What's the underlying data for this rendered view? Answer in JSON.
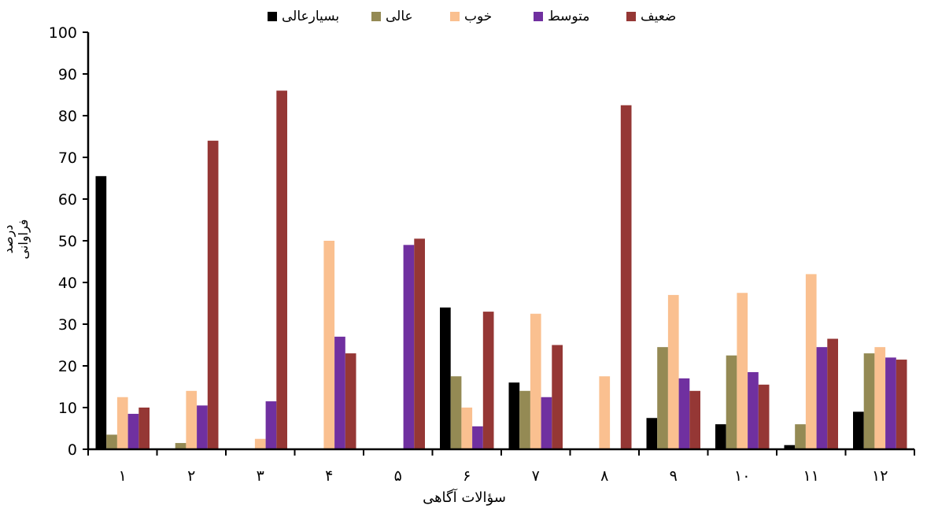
{
  "chart_data": {
    "type": "bar",
    "categories": [
      "۱",
      "۲",
      "۳",
      "۴",
      "۵",
      "۶",
      "۷",
      "۸",
      "۹",
      "۱۰",
      "۱۱",
      "۱۲"
    ],
    "series": [
      {
        "name": "بسیارعالی",
        "color": "#000000",
        "values": [
          65.5,
          0,
          0,
          0,
          0,
          34,
          16,
          0,
          7.5,
          6,
          1,
          9
        ]
      },
      {
        "name": "عالی",
        "color": "#948A54",
        "values": [
          3.5,
          1.5,
          0,
          0,
          0,
          17.5,
          14,
          0,
          24.5,
          22.5,
          6,
          23
        ]
      },
      {
        "name": "خوب",
        "color": "#FAC090",
        "values": [
          12.5,
          14,
          2.5,
          50,
          0,
          10,
          32.5,
          17.5,
          37,
          37.5,
          42,
          24.5
        ]
      },
      {
        "name": "متوسط",
        "color": "#7030A0",
        "values": [
          8.5,
          10.5,
          11.5,
          27,
          49,
          5.5,
          12.5,
          0,
          17,
          18.5,
          24.5,
          22
        ]
      },
      {
        "name": "ضعیف",
        "color": "#953735",
        "values": [
          10,
          74,
          86,
          23,
          50.5,
          33,
          25,
          82.5,
          14,
          15.5,
          26.5,
          21.5
        ]
      }
    ],
    "xlabel": "سؤالات آگاهی",
    "ylabel": "درصد فراوانی",
    "ylim": [
      0,
      100
    ],
    "yticks": [
      "0",
      "10",
      "20",
      "30",
      "40",
      "50",
      "60",
      "70",
      "80",
      "90",
      "100"
    ],
    "grid": false,
    "legend": "top"
  }
}
